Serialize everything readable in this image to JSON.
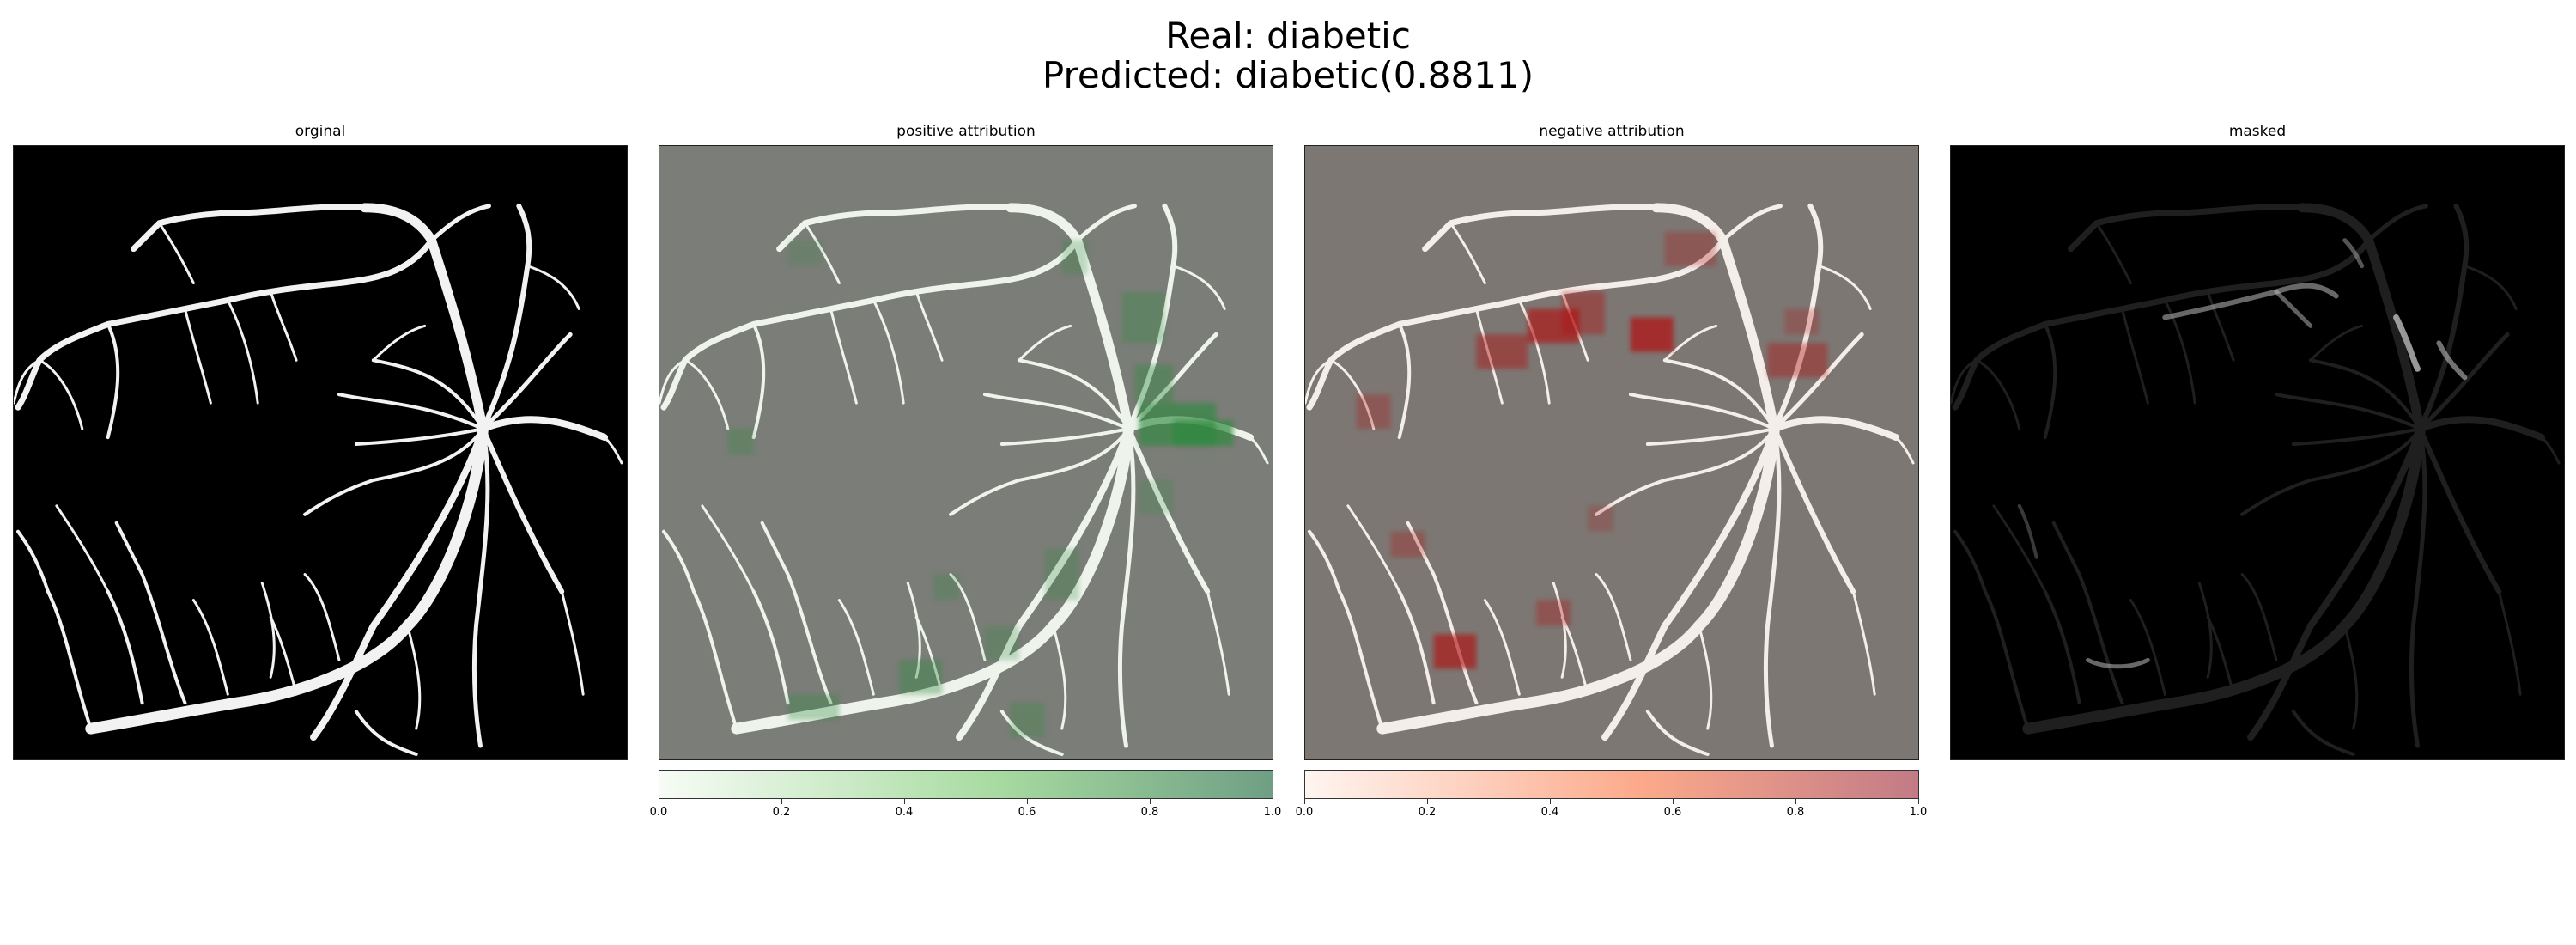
{
  "figure": {
    "real_line": "Real: diabetic",
    "predicted_line": "Predicted: diabetic(0.8811)"
  },
  "panels": [
    {
      "title": "orginal"
    },
    {
      "title": "positive attribution",
      "colormap": "Greens",
      "bg_color": "#7b7d78",
      "overlay_color": "#2e8a3e"
    },
    {
      "title": "negative attribution",
      "colormap": "Reds",
      "bg_color": "#7d7773",
      "overlay_color": "#b01010"
    },
    {
      "title": "masked"
    }
  ],
  "colorbars": [
    {
      "name": "positive",
      "from": "#f7fcf5",
      "mid": "#a7dba0",
      "to": "#6f9f84",
      "ticks": [
        "0.0",
        "0.2",
        "0.4",
        "0.6",
        "0.8",
        "1.0"
      ]
    },
    {
      "name": "negative",
      "from": "#fff5f0",
      "mid": "#fca98a",
      "to": "#c27b86",
      "ticks": [
        "0.0",
        "0.2",
        "0.4",
        "0.6",
        "0.8",
        "1.0"
      ]
    }
  ]
}
